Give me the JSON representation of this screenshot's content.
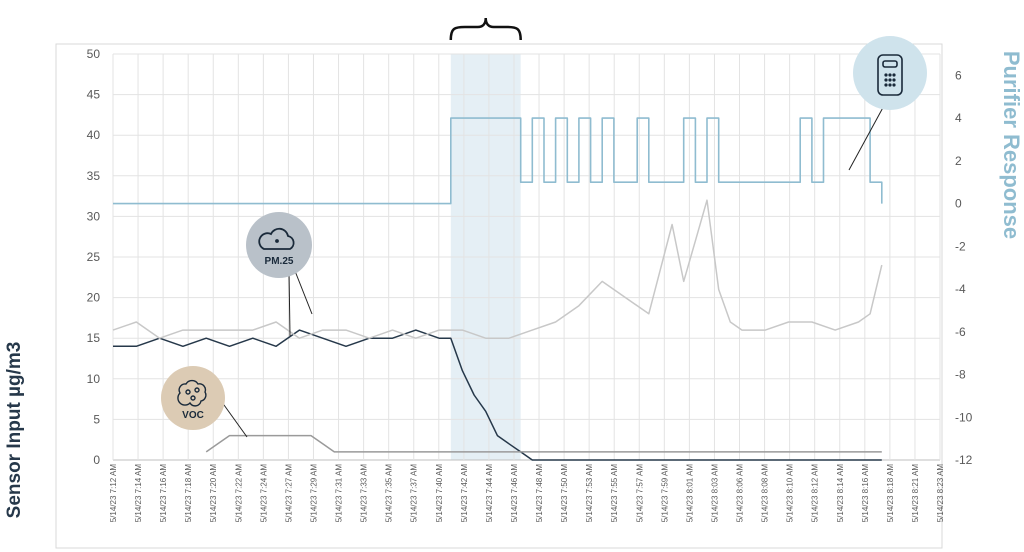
{
  "chart_data": {
    "type": "line",
    "title": "",
    "xlabel": "",
    "ylabel": "Sensor Input µg/m3",
    "y2label": "Purifier Response",
    "ylim": [
      0,
      50
    ],
    "y2lim": [
      -12,
      7
    ],
    "yticks": [
      0,
      5,
      10,
      15,
      20,
      25,
      30,
      35,
      40,
      45,
      50
    ],
    "y2ticks": [
      -12,
      -10,
      -8,
      -6,
      -4,
      -2,
      0,
      2,
      4,
      6
    ],
    "grid": true,
    "legend": "none",
    "x_ticks": [
      "5/14/23 7:12 AM",
      "5/14/23 7:14 AM",
      "5/14/23 7:16 AM",
      "5/14/23 7:18 AM",
      "5/14/23 7:20 AM",
      "5/14/23 7:22 AM",
      "5/14/23 7:24 AM",
      "5/14/23 7:27 AM",
      "5/14/23 7:29 AM",
      "5/14/23 7:31 AM",
      "5/14/23 7:33 AM",
      "5/14/23 7:35 AM",
      "5/14/23 7:37 AM",
      "5/14/23 7:40 AM",
      "5/14/23 7:42 AM",
      "5/14/23 7:44 AM",
      "5/14/23 7:46 AM",
      "5/14/23 7:48 AM",
      "5/14/23 7:50 AM",
      "5/14/23 7:53 AM",
      "5/14/23 7:55 AM",
      "5/14/23 7:57 AM",
      "5/14/23 7:59 AM",
      "5/14/23 8:01 AM",
      "5/14/23 8:03 AM",
      "5/14/23 8:06 AM",
      "5/14/23 8:08 AM",
      "5/14/23 8:10 AM",
      "5/14/23 8:12 AM",
      "5/14/23 8:14 AM",
      "5/14/23 8:16 AM",
      "5/14/23 8:18 AM",
      "5/14/23 8:21 AM",
      "5/14/23 8:23 AM"
    ],
    "highlight_range": [
      "5/14/23 7:41 AM",
      "5/14/23 7:47 AM"
    ],
    "annotations": [
      {
        "label": "PM.25",
        "icon": "cloud-icon",
        "color": "#b9c1c9"
      },
      {
        "label": "VOC",
        "icon": "molecule-icon",
        "color": "#dccbb4"
      },
      {
        "label": "",
        "icon": "air-purifier-icon",
        "color": "#cfe3ec"
      }
    ],
    "series": [
      {
        "name": "",
        "axis": "left",
        "color": "#26384a",
        "x": [
          "7:12",
          "7:14",
          "7:16",
          "7:18",
          "7:20",
          "7:22",
          "7:24",
          "7:26",
          "7:28",
          "7:30",
          "7:32",
          "7:34",
          "7:36",
          "7:38",
          "7:40",
          "7:41",
          "7:42",
          "7:43",
          "7:44",
          "7:45",
          "7:46",
          "7:47",
          "7:48",
          "8:18"
        ],
        "values": [
          14,
          14,
          15,
          14,
          15,
          14,
          15,
          14,
          16,
          15,
          14,
          15,
          15,
          16,
          15,
          15,
          11,
          8,
          6,
          3,
          2,
          1,
          0,
          0
        ]
      },
      {
        "name": "",
        "axis": "left",
        "color": "#c8c8c8",
        "x": [
          "7:12",
          "7:14",
          "7:16",
          "7:18",
          "7:20",
          "7:22",
          "7:24",
          "7:26",
          "7:28",
          "7:30",
          "7:32",
          "7:34",
          "7:36",
          "7:38",
          "7:40",
          "7:42",
          "7:44",
          "7:46",
          "7:48",
          "7:50",
          "7:52",
          "7:54",
          "7:56",
          "7:58",
          "8:00",
          "8:01",
          "8:02",
          "8:03",
          "8:04",
          "8:05",
          "8:06",
          "8:08",
          "8:10",
          "8:12",
          "8:14",
          "8:16",
          "8:17",
          "8:18"
        ],
        "values": [
          16,
          17,
          15,
          16,
          16,
          16,
          16,
          17,
          15,
          16,
          16,
          15,
          16,
          15,
          16,
          16,
          15,
          15,
          16,
          17,
          19,
          22,
          20,
          18,
          29,
          22,
          27,
          32,
          21,
          17,
          16,
          16,
          17,
          17,
          16,
          17,
          18,
          24
        ]
      },
      {
        "name": "",
        "axis": "left",
        "color": "#9a9a9a",
        "x": [
          "7:12",
          "7:19",
          "7:20",
          "7:21",
          "7:22",
          "7:23",
          "7:29",
          "7:30",
          "7:31",
          "8:18"
        ],
        "values": [
          null,
          null,
          1,
          2,
          3,
          3,
          3,
          2,
          1,
          1
        ]
      },
      {
        "name": "",
        "axis": "right",
        "color": "#8fbcd0",
        "x": [
          "7:12",
          "7:41",
          "7:41",
          "7:47",
          "7:47",
          "7:48",
          "7:49",
          "7:50",
          "7:51",
          "7:52",
          "7:53",
          "7:54",
          "7:55",
          "7:56",
          "7:57",
          "7:58",
          "8:00",
          "8:01",
          "8:02",
          "8:03",
          "8:04",
          "8:10",
          "8:11",
          "8:12",
          "8:13",
          "8:17",
          "8:18",
          "8:18"
        ],
        "values": [
          0,
          0,
          4,
          4,
          1,
          4,
          1,
          4,
          1,
          4,
          1,
          4,
          1,
          1,
          4,
          1,
          1,
          4,
          1,
          4,
          1,
          1,
          4,
          1,
          4,
          1,
          1,
          0
        ]
      }
    ]
  }
}
